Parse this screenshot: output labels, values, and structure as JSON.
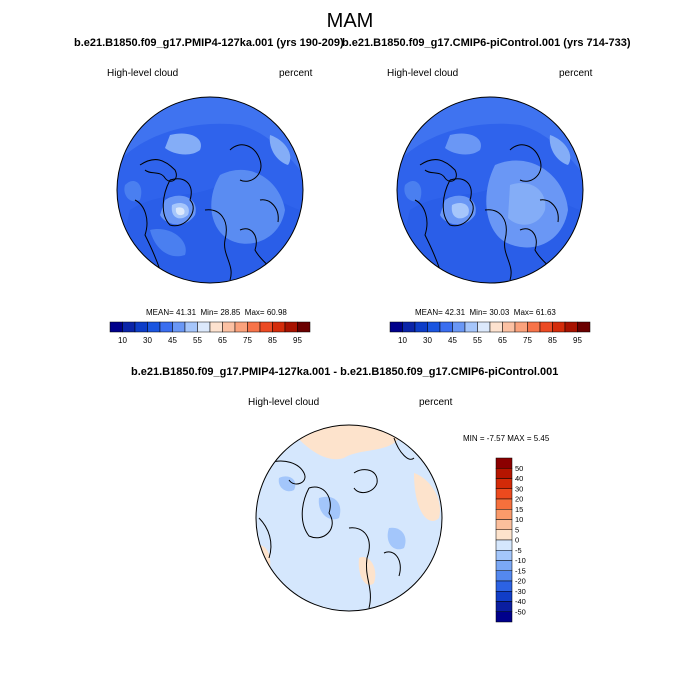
{
  "season": "MAM",
  "panels": [
    {
      "run": "b.e21.B1850.f09_g17.PMIP4-127ka.001 (yrs 190-209)",
      "variable": "High-level cloud",
      "units": "percent",
      "stats": {
        "mean_label": "MEAN=",
        "mean": "41.31",
        "min_label": "Min=",
        "min": "28.85",
        "max_label": "Max=",
        "max": "60.98"
      }
    },
    {
      "run": "b.e21.B1850.f09_g17.CMIP6-piControl.001 (yrs 714-733)",
      "variable": "High-level cloud",
      "units": "percent",
      "stats": {
        "mean_label": "MEAN=",
        "mean": "42.31",
        "min_label": "Min=",
        "min": "30.03",
        "max_label": "Max=",
        "max": "61.63"
      }
    }
  ],
  "diff_panel": {
    "title": "b.e21.B1850.f09_g17.PMIP4-127ka.001 - b.e21.B1850.f09_g17.CMIP6-piControl.001",
    "variable": "High-level cloud",
    "units": "percent",
    "stats": {
      "min_label": "MIN =",
      "min": "-7.57",
      "max_label": "MAX =",
      "max": "5.45"
    }
  },
  "chart_data": [
    {
      "type": "heatmap",
      "projection": "north-polar-stereographic",
      "title": "b.e21.B1850.f09_g17.PMIP4-127ka.001 (yrs 190-209)",
      "field": "High-level cloud",
      "units": "percent",
      "mean": 41.31,
      "min": 28.85,
      "max": 60.98,
      "colorbar_levels": [
        10,
        20,
        30,
        40,
        45,
        50,
        55,
        60,
        65,
        70,
        75,
        80,
        85,
        90,
        95
      ],
      "colorbar_tick_labels": [
        "10",
        "30",
        "45",
        "55",
        "65",
        "75",
        "85",
        "95"
      ],
      "colorbar_colors": [
        "#00008b",
        "#0a24a8",
        "#0d3dc8",
        "#1a55e0",
        "#3a6ef0",
        "#6a97f5",
        "#a6c6fb",
        "#dce9fc",
        "#fde2cf",
        "#fcc1a3",
        "#fba27c",
        "#f7744a",
        "#ec4a23",
        "#d42c0a",
        "#a81200",
        "#6b0000"
      ]
    },
    {
      "type": "heatmap",
      "projection": "north-polar-stereographic",
      "title": "b.e21.B1850.f09_g17.CMIP6-piControl.001 (yrs 714-733)",
      "field": "High-level cloud",
      "units": "percent",
      "mean": 42.31,
      "min": 30.03,
      "max": 61.63,
      "colorbar_levels": [
        10,
        20,
        30,
        40,
        45,
        50,
        55,
        60,
        65,
        70,
        75,
        80,
        85,
        90,
        95
      ],
      "colorbar_tick_labels": [
        "10",
        "30",
        "45",
        "55",
        "65",
        "75",
        "85",
        "95"
      ],
      "colorbar_colors": [
        "#00008b",
        "#0a24a8",
        "#0d3dc8",
        "#1a55e0",
        "#3a6ef0",
        "#6a97f5",
        "#a6c6fb",
        "#dce9fc",
        "#fde2cf",
        "#fcc1a3",
        "#fba27c",
        "#f7744a",
        "#ec4a23",
        "#d42c0a",
        "#a81200",
        "#6b0000"
      ]
    },
    {
      "type": "heatmap",
      "projection": "north-polar-stereographic",
      "title": "b.e21.B1850.f09_g17.PMIP4-127ka.001 - b.e21.B1850.f09_g17.CMIP6-piControl.001",
      "field": "High-level cloud",
      "units": "percent",
      "min": -7.57,
      "max": 5.45,
      "colorbar_levels": [
        50,
        40,
        30,
        20,
        15,
        10,
        5,
        0,
        -5,
        -10,
        -15,
        -20,
        -30,
        -40,
        -50
      ],
      "colorbar_tick_labels": [
        "50",
        "40",
        "30",
        "20",
        "15",
        "10",
        "5",
        "0",
        "-5",
        "-10",
        "-15",
        "-20",
        "-30",
        "-40",
        "-50"
      ],
      "colorbar_colors": [
        "#8b0000",
        "#b51500",
        "#d32a08",
        "#ec4a1e",
        "#f6703c",
        "#fa9a6a",
        "#fcbf9c",
        "#fde3cc",
        "#d5e7fd",
        "#a3c6fb",
        "#7ba8f5",
        "#5488ef",
        "#2c62e3",
        "#113dc7",
        "#0a1ea0",
        "#00008b"
      ]
    }
  ]
}
